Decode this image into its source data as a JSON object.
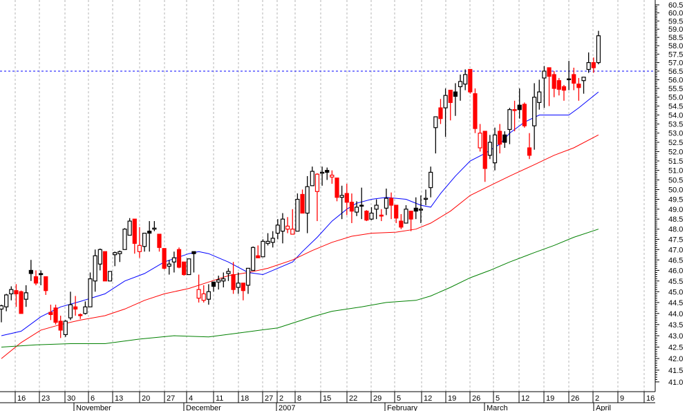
{
  "chart_data": {
    "type": "candlestick",
    "title": "",
    "y_scale": "log",
    "ylim": [
      41.0,
      60.5
    ],
    "y_ticks": [
      "60.5",
      "60.0",
      "59.5",
      "59.0",
      "58.5",
      "58.0",
      "57.5",
      "57.0",
      "56.5",
      "56.0",
      "55.5",
      "55.0",
      "54.5",
      "54.0",
      "53.5",
      "53.0",
      "52.5",
      "52.0",
      "51.5",
      "51.0",
      "50.5",
      "50.0",
      "49.5",
      "49.0",
      "48.5",
      "48.0",
      "47.5",
      "47.0",
      "46.5",
      "46.0",
      "45.5",
      "45.0",
      "44.5",
      "44.0",
      "43.5",
      "43.0",
      "42.5",
      "42.0",
      "41.5",
      "41.0"
    ],
    "x_day_ticks": [
      "16",
      "23",
      "30",
      "6",
      "13",
      "20",
      "27",
      "4",
      "11",
      "18",
      "27",
      "2",
      "8",
      "15",
      "22",
      "29",
      "5",
      "12",
      "19",
      "26",
      "5",
      "12",
      "19",
      "26",
      "2",
      "9",
      "16"
    ],
    "x_month_labels": [
      "November",
      "December",
      "2007",
      "February",
      "March",
      "April"
    ],
    "reference_line": {
      "value": 56.5,
      "color": "#0000ff",
      "style": "dashed"
    },
    "colors": {
      "up": "#000000",
      "down": "#ff0000",
      "ma_short": "#0000ff",
      "ma_mid": "#ff0000",
      "ma_long": "#008000",
      "grid": "#b4b4b4"
    },
    "candles_ohlc": [
      [
        44.2,
        44.4,
        43.6,
        44.35
      ],
      [
        44.3,
        44.9,
        44.1,
        44.85
      ],
      [
        44.9,
        45.25,
        44.6,
        45.1
      ],
      [
        45.05,
        45.35,
        44.3,
        44.9
      ],
      [
        45.0,
        45.05,
        44.0,
        44.0
      ],
      [
        44.65,
        45.3,
        44.3,
        44.95
      ],
      [
        46.0,
        46.5,
        45.5,
        45.85
      ],
      [
        45.7,
        46.0,
        45.3,
        45.4
      ],
      [
        45.85,
        46.0,
        45.3,
        45.8
      ],
      [
        45.7,
        45.7,
        44.85,
        45.05
      ],
      [
        44.05,
        44.4,
        43.7,
        43.95
      ],
      [
        44.25,
        44.4,
        43.5,
        43.6
      ],
      [
        43.65,
        43.9,
        42.9,
        43.25
      ],
      [
        43.05,
        43.7,
        42.95,
        43.65
      ],
      [
        43.8,
        45.0,
        43.7,
        44.4
      ],
      [
        44.3,
        44.8,
        43.9,
        44.2
      ],
      [
        43.95,
        44.0,
        43.75,
        43.9
      ],
      [
        44.0,
        44.55,
        43.95,
        44.3
      ],
      [
        44.3,
        45.9,
        44.3,
        45.6
      ],
      [
        45.5,
        47.0,
        45.0,
        46.7
      ],
      [
        46.3,
        47.05,
        46.0,
        47.0
      ],
      [
        46.9,
        46.9,
        45.5,
        45.5
      ],
      [
        45.5,
        45.95,
        45.5,
        45.95
      ],
      [
        46.75,
        46.9,
        46.2,
        46.85
      ],
      [
        46.8,
        46.95,
        46.4,
        46.9
      ],
      [
        47.0,
        48.05,
        47.0,
        48.0
      ],
      [
        47.7,
        48.55,
        47.7,
        48.4
      ],
      [
        48.5,
        48.5,
        46.8,
        47.3
      ],
      [
        46.9,
        48.1,
        46.6,
        47.2
      ],
      [
        47.15,
        47.8,
        46.9,
        47.8
      ],
      [
        47.9,
        48.4,
        46.9,
        47.8
      ],
      [
        48.0,
        48.4,
        47.9,
        48.05
      ],
      [
        47.75,
        47.75,
        46.9,
        47.1
      ],
      [
        47.05,
        47.05,
        46.05,
        46.1
      ],
      [
        46.2,
        46.5,
        45.8,
        46.3
      ],
      [
        46.4,
        46.9,
        45.9,
        46.6
      ],
      [
        47.0,
        47.1,
        46.1,
        46.15
      ],
      [
        46.4,
        46.4,
        45.75,
        45.8
      ],
      [
        45.8,
        46.55,
        45.8,
        46.55
      ],
      [
        46.9,
        46.9,
        45.9,
        46.8
      ],
      [
        44.7,
        45.8,
        44.5,
        45.1
      ],
      [
        44.6,
        45.3,
        44.5,
        44.9
      ],
      [
        44.65,
        45.35,
        44.4,
        45.0
      ],
      [
        45.45,
        45.45,
        45.0,
        45.25
      ],
      [
        45.45,
        45.75,
        45.1,
        45.55
      ],
      [
        45.5,
        45.9,
        45.2,
        45.6
      ],
      [
        45.85,
        46.1,
        45.5,
        45.95
      ],
      [
        45.8,
        46.4,
        44.9,
        45.1
      ],
      [
        45.2,
        45.9,
        44.9,
        45.4
      ],
      [
        45.4,
        45.4,
        44.6,
        45.05
      ],
      [
        45.3,
        46.1,
        44.9,
        46.1
      ],
      [
        46.0,
        47.15,
        46.0,
        47.1
      ],
      [
        46.7,
        47.2,
        46.6,
        46.6
      ],
      [
        46.65,
        47.5,
        46.65,
        47.4
      ],
      [
        47.3,
        47.8,
        47.2,
        47.4
      ],
      [
        47.35,
        47.9,
        47.1,
        47.55
      ],
      [
        47.8,
        48.5,
        47.5,
        48.2
      ],
      [
        47.9,
        48.8,
        47.3,
        48.5
      ],
      [
        48.0,
        48.6,
        47.8,
        48.15
      ],
      [
        47.75,
        49.0,
        47.75,
        48.0
      ],
      [
        47.9,
        49.8,
        47.9,
        49.5
      ],
      [
        49.75,
        50.0,
        48.8,
        48.8
      ],
      [
        48.8,
        50.7,
        47.8,
        50.15
      ],
      [
        50.2,
        51.2,
        50.2,
        50.95
      ],
      [
        49.9,
        50.85,
        48.4,
        50.8
      ],
      [
        50.85,
        51.2,
        50.2,
        50.9
      ],
      [
        51.0,
        51.15,
        50.5,
        50.9
      ],
      [
        50.65,
        51.0,
        50.3,
        50.75
      ],
      [
        50.6,
        50.6,
        49.4,
        49.6
      ],
      [
        49.6,
        50.2,
        48.5,
        49.7
      ],
      [
        49.8,
        50.3,
        48.7,
        49.35
      ],
      [
        49.35,
        49.8,
        48.3,
        48.9
      ],
      [
        48.85,
        49.4,
        48.65,
        49.1
      ],
      [
        49.2,
        50.1,
        48.5,
        49.15
      ],
      [
        48.9,
        48.95,
        48.4,
        48.45
      ],
      [
        48.5,
        49.1,
        48.45,
        48.8
      ],
      [
        49.0,
        49.5,
        48.5,
        49.2
      ],
      [
        48.7,
        49.0,
        48.4,
        48.65
      ],
      [
        49.05,
        50.05,
        48.7,
        49.55
      ],
      [
        49.55,
        49.85,
        48.5,
        49.2
      ],
      [
        49.2,
        49.2,
        48.3,
        48.55
      ],
      [
        48.4,
        48.75,
        48.0,
        48.1
      ],
      [
        48.3,
        49.2,
        48.3,
        49.0
      ],
      [
        48.9,
        48.9,
        47.9,
        48.5
      ],
      [
        49.05,
        49.6,
        48.5,
        48.9
      ],
      [
        48.95,
        49.7,
        48.3,
        49.0
      ],
      [
        49.5,
        50.0,
        49.2,
        49.55
      ],
      [
        50.1,
        51.2,
        49.6,
        50.9
      ],
      [
        53.3,
        53.9,
        51.9,
        53.9
      ],
      [
        54.4,
        54.9,
        53.5,
        53.8
      ],
      [
        54.4,
        55.5,
        52.8,
        55.1
      ],
      [
        55.4,
        55.4,
        53.7,
        54.7
      ],
      [
        55.3,
        55.8,
        53.95,
        55.05
      ],
      [
        55.6,
        56.3,
        54.8,
        55.9
      ],
      [
        55.75,
        56.6,
        55.4,
        56.3
      ],
      [
        56.6,
        56.6,
        55.2,
        55.3
      ],
      [
        55.2,
        55.5,
        53.0,
        53.25
      ],
      [
        52.2,
        53.5,
        52.0,
        53.0
      ],
      [
        53.1,
        53.1,
        50.4,
        51.1
      ],
      [
        51.8,
        52.9,
        51.6,
        52.5
      ],
      [
        51.4,
        53.3,
        51.0,
        52.9
      ],
      [
        53.1,
        53.5,
        51.9,
        52.4
      ],
      [
        52.9,
        53.1,
        52.2,
        52.5
      ],
      [
        53.2,
        54.4,
        52.4,
        54.3
      ],
      [
        54.3,
        54.8,
        53.1,
        54.25
      ],
      [
        54.55,
        55.5,
        53.8,
        54.3
      ],
      [
        54.6,
        54.7,
        53.3,
        53.4
      ],
      [
        52.2,
        53.0,
        51.6,
        51.8
      ],
      [
        53.4,
        55.8,
        52.1,
        55.0
      ],
      [
        54.7,
        56.0,
        54.3,
        55.3
      ],
      [
        56.1,
        56.8,
        54.4,
        56.5
      ],
      [
        56.7,
        56.7,
        54.5,
        56.2
      ],
      [
        56.3,
        56.5,
        55.0,
        55.5
      ],
      [
        55.95,
        56.1,
        55.1,
        55.45
      ],
      [
        55.6,
        55.7,
        54.8,
        55.4
      ],
      [
        56.05,
        57.1,
        55.4,
        56.0
      ],
      [
        56.3,
        56.7,
        55.4,
        55.8
      ],
      [
        55.75,
        56.1,
        54.8,
        55.55
      ],
      [
        55.95,
        56.15,
        55.2,
        56.15
      ],
      [
        56.6,
        57.6,
        56.4,
        57.0
      ],
      [
        57.0,
        57.3,
        56.4,
        56.7
      ],
      [
        57.0,
        58.9,
        56.9,
        58.6
      ]
    ],
    "moving_averages": [
      {
        "name": "short",
        "color": "#0000ff",
        "points": [
          [
            0,
            43.0
          ],
          [
            4,
            43.2
          ],
          [
            8,
            43.85
          ],
          [
            12,
            44.3
          ],
          [
            16,
            44.55
          ],
          [
            21,
            44.9
          ],
          [
            25,
            45.5
          ],
          [
            29,
            45.85
          ],
          [
            33,
            46.4
          ],
          [
            38,
            46.8
          ],
          [
            40,
            46.9
          ],
          [
            42,
            46.8
          ],
          [
            46,
            46.4
          ],
          [
            50,
            45.9
          ],
          [
            53,
            45.8
          ],
          [
            56,
            46.1
          ],
          [
            59,
            46.4
          ],
          [
            61,
            46.9
          ],
          [
            64,
            47.6
          ],
          [
            67,
            48.4
          ],
          [
            70,
            49.0
          ],
          [
            72,
            49.3
          ],
          [
            75,
            49.5
          ],
          [
            78,
            49.6
          ],
          [
            82,
            49.5
          ],
          [
            85,
            49.2
          ],
          [
            87,
            49.1
          ],
          [
            89,
            49.8
          ],
          [
            92,
            50.7
          ],
          [
            95,
            51.5
          ],
          [
            98,
            51.9
          ],
          [
            101,
            52.4
          ],
          [
            103,
            53.0
          ],
          [
            106,
            53.6
          ],
          [
            109,
            54.0
          ],
          [
            112,
            54.0
          ],
          [
            115,
            54.0
          ],
          [
            117,
            54.4
          ],
          [
            121,
            55.3
          ]
        ]
      },
      {
        "name": "mid",
        "color": "#ff0000",
        "points": [
          [
            0,
            42.0
          ],
          [
            4,
            42.7
          ],
          [
            8,
            43.25
          ],
          [
            12,
            43.5
          ],
          [
            16,
            43.7
          ],
          [
            21,
            43.9
          ],
          [
            25,
            44.2
          ],
          [
            29,
            44.6
          ],
          [
            33,
            44.9
          ],
          [
            38,
            45.15
          ],
          [
            42,
            45.45
          ],
          [
            46,
            45.75
          ],
          [
            50,
            45.9
          ],
          [
            54,
            46.1
          ],
          [
            59,
            46.5
          ],
          [
            63,
            46.95
          ],
          [
            67,
            47.35
          ],
          [
            71,
            47.65
          ],
          [
            75,
            47.8
          ],
          [
            80,
            47.85
          ],
          [
            84,
            48.0
          ],
          [
            87,
            48.3
          ],
          [
            91,
            48.9
          ],
          [
            95,
            49.7
          ],
          [
            99,
            50.2
          ],
          [
            103,
            50.7
          ],
          [
            108,
            51.3
          ],
          [
            112,
            51.8
          ],
          [
            116,
            52.2
          ],
          [
            121,
            52.9
          ]
        ]
      },
      {
        "name": "long",
        "color": "#008000",
        "points": [
          [
            0,
            42.5
          ],
          [
            7,
            42.6
          ],
          [
            14,
            42.65
          ],
          [
            21,
            42.65
          ],
          [
            28,
            42.85
          ],
          [
            35,
            43.0
          ],
          [
            42,
            42.95
          ],
          [
            49,
            43.15
          ],
          [
            56,
            43.35
          ],
          [
            63,
            43.85
          ],
          [
            67,
            44.1
          ],
          [
            73,
            44.3
          ],
          [
            78,
            44.5
          ],
          [
            84,
            44.6
          ],
          [
            87,
            44.8
          ],
          [
            91,
            45.2
          ],
          [
            95,
            45.65
          ],
          [
            99,
            46.0
          ],
          [
            103,
            46.4
          ],
          [
            108,
            46.85
          ],
          [
            112,
            47.2
          ],
          [
            116,
            47.6
          ],
          [
            121,
            48.0
          ]
        ]
      }
    ]
  }
}
